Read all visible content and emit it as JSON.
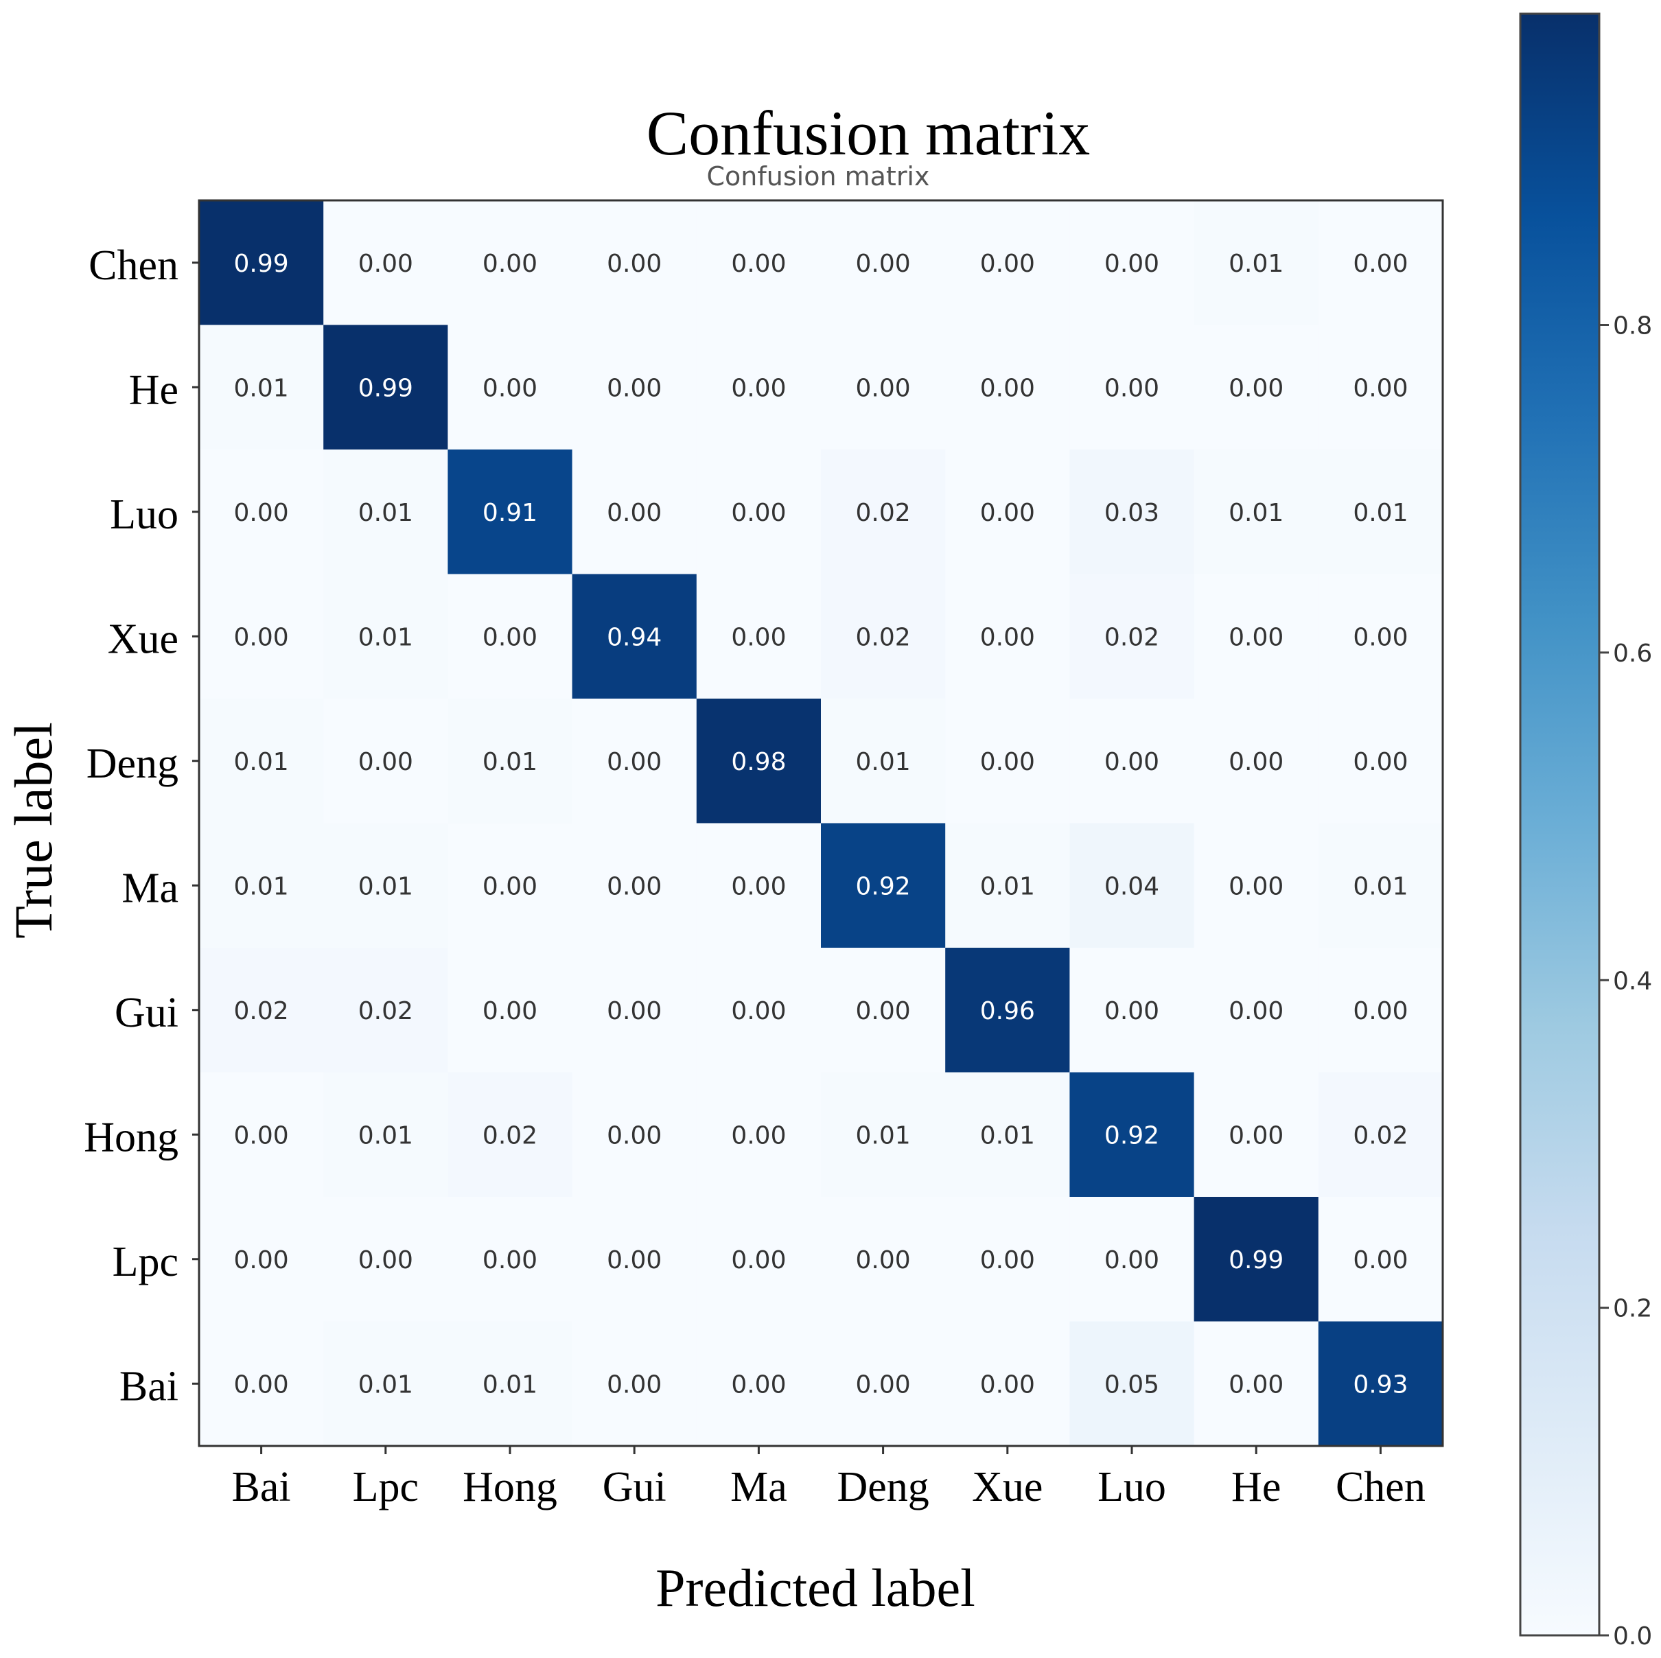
{
  "chart_data": {
    "type": "heatmap",
    "title": "Confusion matrix",
    "subtitle": "Confusion matrix",
    "xlabel": "Predicted label",
    "ylabel": "True label",
    "x_categories": [
      "Bai",
      "Lpc",
      "Hong",
      "Gui",
      "Ma",
      "Deng",
      "Xue",
      "Luo",
      "He",
      "Chen"
    ],
    "y_categories": [
      "Chen",
      "He",
      "Luo",
      "Xue",
      "Deng",
      "Ma",
      "Gui",
      "Hong",
      "Lpc",
      "Bai"
    ],
    "values": [
      [
        0.99,
        0.0,
        0.0,
        0.0,
        0.0,
        0.0,
        0.0,
        0.0,
        0.01,
        0.0
      ],
      [
        0.01,
        0.99,
        0.0,
        0.0,
        0.0,
        0.0,
        0.0,
        0.0,
        0.0,
        0.0
      ],
      [
        0.0,
        0.01,
        0.91,
        0.0,
        0.0,
        0.02,
        0.0,
        0.03,
        0.01,
        0.01
      ],
      [
        0.0,
        0.01,
        0.0,
        0.94,
        0.0,
        0.02,
        0.0,
        0.02,
        0.0,
        0.0
      ],
      [
        0.01,
        0.0,
        0.01,
        0.0,
        0.98,
        0.01,
        0.0,
        0.0,
        0.0,
        0.0
      ],
      [
        0.01,
        0.01,
        0.0,
        0.0,
        0.0,
        0.92,
        0.01,
        0.04,
        0.0,
        0.01
      ],
      [
        0.02,
        0.02,
        0.0,
        0.0,
        0.0,
        0.0,
        0.96,
        0.0,
        0.0,
        0.0
      ],
      [
        0.0,
        0.01,
        0.02,
        0.0,
        0.0,
        0.01,
        0.01,
        0.92,
        0.0,
        0.02
      ],
      [
        0.0,
        0.0,
        0.0,
        0.0,
        0.0,
        0.0,
        0.0,
        0.0,
        0.99,
        0.0
      ],
      [
        0.0,
        0.01,
        0.01,
        0.0,
        0.0,
        0.0,
        0.0,
        0.05,
        0.0,
        0.93
      ]
    ],
    "colormap": "Blues",
    "colorbar": {
      "range": [
        0.0,
        0.99
      ],
      "ticks": [
        0.0,
        0.2,
        0.4,
        0.6,
        0.8
      ],
      "tick_labels": [
        "0.0",
        "0.2",
        "0.4",
        "0.6",
        "0.8"
      ]
    },
    "text_colors": {
      "dark": "#333333",
      "light": "#ffffff"
    }
  }
}
